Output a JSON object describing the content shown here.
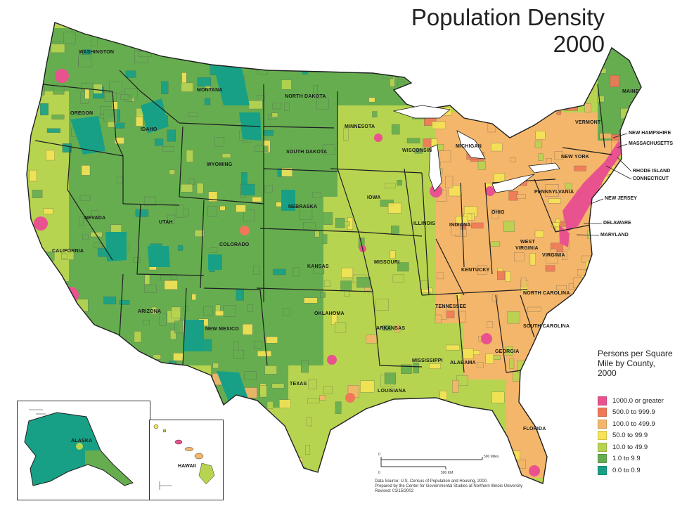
{
  "title": {
    "line1": "Population Density",
    "line2": "2000"
  },
  "colors": {
    "c1000": "#e8528f",
    "c500": "#f07858",
    "c100": "#f4b66a",
    "c50": "#f5e456",
    "c10": "#b7d450",
    "c1": "#66ad50",
    "c0": "#17a086",
    "border": "#1f1f1f"
  },
  "legend": {
    "title_line1": "Persons per Square",
    "title_line2": "Mile by County, 2000",
    "items": [
      {
        "label": "1000.0 or greater",
        "color": "#e8528f"
      },
      {
        "label": "500.0 to 999.9",
        "color": "#f07858"
      },
      {
        "label": "100.0 to 499.9",
        "color": "#f4b66a"
      },
      {
        "label": "50.0 to 99.9",
        "color": "#f5e456"
      },
      {
        "label": "10.0 to 49.9",
        "color": "#b7d450"
      },
      {
        "label": "1.0 to 9.9",
        "color": "#66ad50"
      },
      {
        "label": "0.0 to 0.9",
        "color": "#17a086"
      }
    ]
  },
  "states": {
    "washington": "WASHINGTON",
    "oregon": "OREGON",
    "california": "CALIFORNIA",
    "nevada": "NEVADA",
    "idaho": "IDAHO",
    "montana": "MONTANA",
    "wyoming": "WYOMING",
    "utah": "UTAH",
    "arizona": "ARIZONA",
    "colorado": "COLORADO",
    "new_mexico": "NEW MEXICO",
    "north_dakota": "NORTH DAKOTA",
    "south_dakota": "SOUTH DAKOTA",
    "nebraska": "NEBRASKA",
    "kansas": "KANSAS",
    "oklahoma": "OKLAHOMA",
    "texas": "TEXAS",
    "minnesota": "MINNESOTA",
    "iowa": "IOWA",
    "missouri": "MISSOURI",
    "arkansas": "ARKANSAS",
    "louisiana": "LOUISIANA",
    "wisconsin": "WISCONSIN",
    "illinois": "ILLINOIS",
    "michigan": "MICHIGAN",
    "indiana": "INDIANA",
    "ohio": "OHIO",
    "kentucky": "KENTUCKY",
    "tennessee": "TENNESSEE",
    "mississippi": "MISSISSIPPI",
    "alabama": "ALABAMA",
    "georgia": "GEORGIA",
    "florida": "FLORIDA",
    "south_carolina": "SOUTH CAROLINA",
    "north_carolina": "NORTH CAROLINA",
    "virginia": "VIRGINIA",
    "west_virginia_1": "WEST",
    "west_virginia_2": "VIRGINIA",
    "pennsylvania": "PENNSYLVANIA",
    "new_york": "NEW YORK",
    "vermont": "VERMONT",
    "maine": "MAINE",
    "alaska": "ALASKA",
    "hawaii": "HAWAII"
  },
  "northeast_labels": {
    "new_hampshire": "NEW HAMPSHIRE",
    "massachusetts": "MASSACHUSETTS",
    "rhode_island": "RHODE ISLAND",
    "connecticut": "CONNECTICUT",
    "new_jersey": "NEW JERSEY",
    "delaware": "DELAWARE",
    "maryland": "MARYLAND"
  },
  "scale": {
    "miles": "500 Miles",
    "km": "500 KM",
    "zero_a": "0",
    "zero_b": "0"
  },
  "source": {
    "line1": "Data Source: U.S. Census of Population and Housing, 2000.",
    "line2": "Prepared by the Center for Governmental Studies at Northern Illinois University",
    "line3": "Revised: 01/15/2002"
  }
}
